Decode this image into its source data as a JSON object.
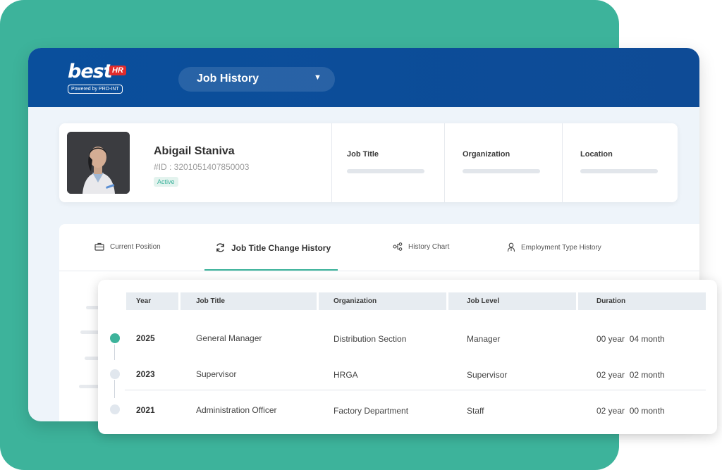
{
  "header": {
    "logo_text": "best",
    "logo_badge": "HR",
    "logo_sub": "Powered by PRO-INT",
    "menu_label": "Job History"
  },
  "profile": {
    "name": "Abigail Staniva",
    "id": "#ID : 3201051407850003",
    "status": "Active",
    "fields": [
      "Job Title",
      "Organization",
      "Location"
    ]
  },
  "tabs": [
    {
      "label": "Current Position",
      "icon": "briefcase-icon"
    },
    {
      "label": "Job Title Change History",
      "icon": "refresh-icon",
      "active": true
    },
    {
      "label": "History Chart",
      "icon": "flow-chart-icon"
    },
    {
      "label": "Employment Type History",
      "icon": "user-badge-icon"
    }
  ],
  "table": {
    "columns": [
      "Year",
      "Job Title",
      "Organization",
      "Job Level",
      "Duration"
    ],
    "rows": [
      {
        "year": "2025",
        "title": "General Manager",
        "org": "Distribution Section",
        "level": "Manager",
        "duration": "00 year  04 month",
        "current": true
      },
      {
        "year": "2023",
        "title": "Supervisor",
        "org": "HRGA",
        "level": "Supervisor",
        "duration": "02 year  02 month"
      },
      {
        "year": "2021",
        "title": "Administration Officer",
        "org": "Factory Department",
        "level": "Staff",
        "duration": "02 year  00 month"
      }
    ]
  },
  "colors": {
    "accent": "#3db39b",
    "header_blue": "#0e4b96",
    "logo_badge": "#e12b2b"
  }
}
